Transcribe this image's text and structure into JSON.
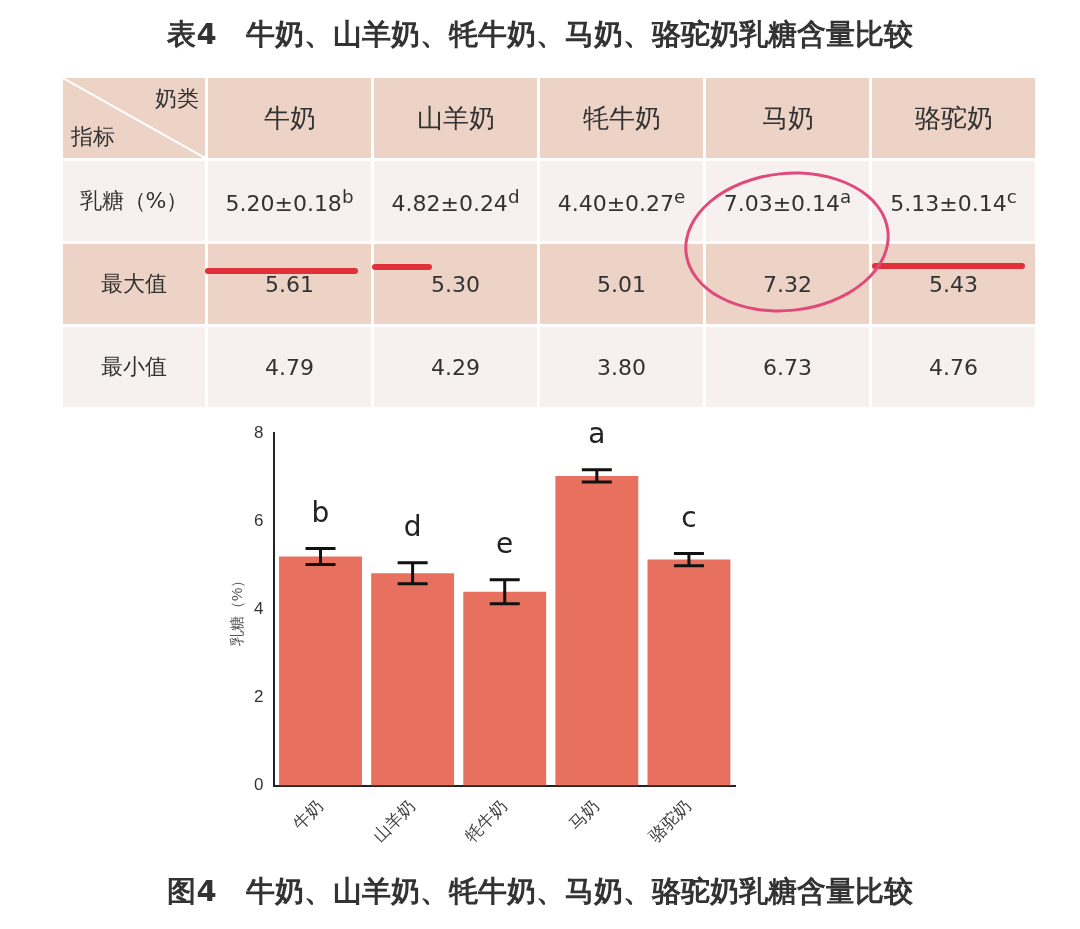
{
  "chart_data": [
    {
      "type": "other",
      "title": "表4　牛奶、山羊奶、牦牛奶、马奶、骆驼奶乳糖含量比较",
      "xlabel": "奶类",
      "ylabel": "指标",
      "categories": [
        "牛奶",
        "山羊奶",
        "牦牛奶",
        "马奶",
        "骆驼奶"
      ],
      "series": [
        {
          "name": "乳糖（%）",
          "values": [
            5.2,
            4.82,
            4.4,
            7.03,
            5.13
          ],
          "value_labels": [
            "5.20±0.18$^{b}$",
            "4.82±0.24$^{d}$",
            "4.40±0.27$^{e}$",
            "7.03±0.14$^{a}$",
            "5.13±0.14$^{c}$"
          ]
        },
        {
          "name": "最大值",
          "values": [
            5.61,
            5.3,
            5.01,
            7.32,
            5.43
          ],
          "value_labels": [
            "5.61",
            "5.30",
            "5.01",
            "7.32",
            "5.43"
          ]
        },
        {
          "name": "最小值",
          "values": [
            4.79,
            4.29,
            3.8,
            6.73,
            4.76
          ],
          "value_labels": [
            "4.79",
            "4.29",
            "3.80",
            "6.73",
            "4.76"
          ]
        }
      ]
    },
    {
      "type": "bar",
      "title": "图4　牛奶、山羊奶、牦牛奶、马奶、骆驼奶乳糖含量比较",
      "ylabel": "乳糖（%）",
      "categories": [
        "牛奶",
        "山羊奶",
        "牦牛奶",
        "马奶",
        "骆驼奶"
      ],
      "values": [
        5.2,
        4.82,
        4.4,
        7.03,
        5.13
      ],
      "errors": [
        0.18,
        0.24,
        0.27,
        0.14,
        0.14
      ],
      "color": "#e8705f",
      "ylim": [
        0,
        8
      ],
      "yticks": [
        0,
        2,
        4,
        6,
        8
      ],
      "annotations": [
        "b",
        "d",
        "e",
        "a",
        "c"
      ]
    }
  ]
}
